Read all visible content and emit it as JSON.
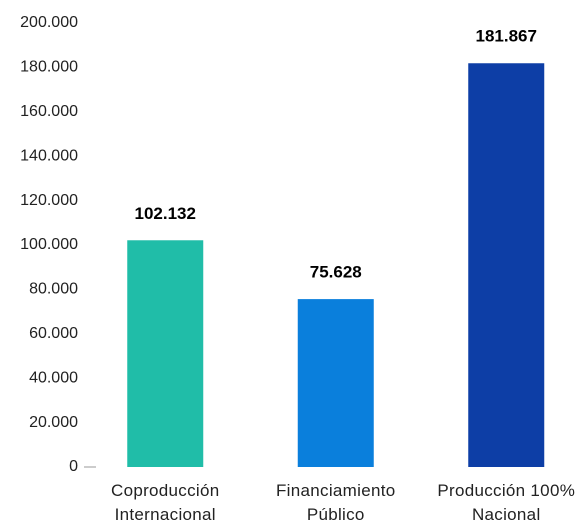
{
  "chart_data": {
    "type": "bar",
    "categories": [
      "Coproducción Internacional",
      "Financiamiento Público",
      "Producción 100% Nacional"
    ],
    "values": [
      102132,
      75628,
      181867
    ],
    "value_labels": [
      "102.132",
      "75.628",
      "181.867"
    ],
    "colors": [
      "#20bda8",
      "#0a7fdc",
      "#0d3ea6"
    ],
    "ylim": [
      0,
      200000
    ],
    "yticks": [
      0,
      {
        "value": 20000,
        "label": "20.000"
      },
      {
        "value": 40000,
        "label": "40.000"
      },
      {
        "value": 60000,
        "label": "60.000"
      },
      {
        "value": 80000,
        "label": "80.000"
      },
      {
        "value": 100000,
        "label": "100.000"
      },
      {
        "value": 120000,
        "label": "120.000"
      },
      {
        "value": 140000,
        "label": "140.000"
      },
      {
        "value": 160000,
        "label": "160.000"
      },
      {
        "value": 180000,
        "label": "180.000"
      },
      {
        "value": 200000,
        "label": "200.000"
      }
    ],
    "grid": false
  }
}
